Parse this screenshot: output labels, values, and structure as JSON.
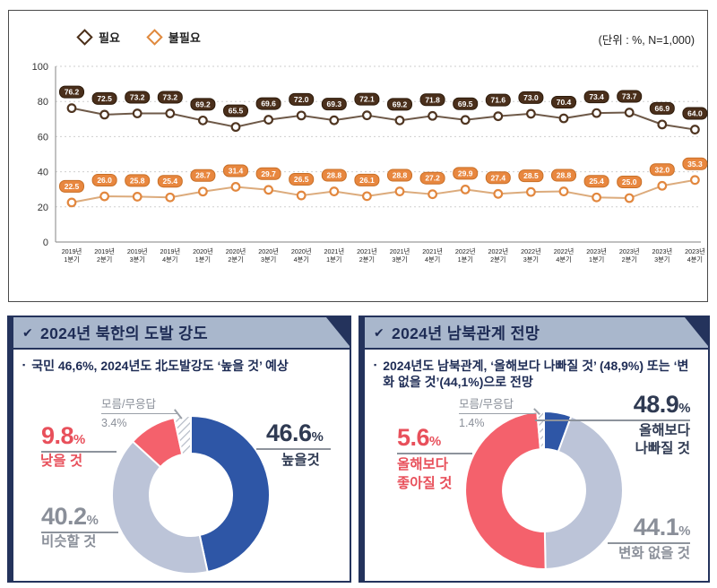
{
  "common": {
    "percent_sign": "%",
    "check_icon": "✔",
    "bullet_icon": "▪"
  },
  "chart_data": [
    {
      "type": "line",
      "unit_note": "(단위 : %, N=1,000)",
      "legend_position": "top-left",
      "grid": true,
      "ylim": [
        0,
        100
      ],
      "y_ticks": [
        0,
        20,
        40,
        60,
        80,
        100
      ],
      "categories": [
        "2019년 1분기",
        "2019년 2분기",
        "2019년 3분기",
        "2019년 4분기",
        "2020년 1분기",
        "2020년 2분기",
        "2020년 3분기",
        "2020년 4분기",
        "2021년 1분기",
        "2021년 2분기",
        "2021년 3분기",
        "2021년 4분기",
        "2022년 1분기",
        "2022년 2분기",
        "2022년 3분기",
        "2022년 4분기",
        "2023년 1분기",
        "2023년 2분기",
        "2023년 3분기",
        "2023년 4분기"
      ],
      "series": [
        {
          "name": "필요",
          "line_color": "#6e5948",
          "marker_color": "#4f3521",
          "pill_color": "#4a2f1b",
          "pill_border": "#2c1a0a",
          "values": [
            76.2,
            72.5,
            73.2,
            73.2,
            69.2,
            65.5,
            69.6,
            72.0,
            69.3,
            72.1,
            69.2,
            71.8,
            69.5,
            71.6,
            73.0,
            70.4,
            73.4,
            73.7,
            66.9,
            64.0
          ]
        },
        {
          "name": "불필요",
          "line_color": "#dcab7c",
          "marker_color": "#e2873e",
          "pill_color": "#e8873f",
          "pill_border": "#c86f26",
          "values": [
            22.5,
            26.0,
            25.8,
            25.4,
            28.7,
            31.4,
            29.7,
            26.5,
            28.8,
            26.1,
            28.8,
            27.2,
            29.9,
            27.4,
            28.5,
            28.8,
            25.4,
            25.0,
            32.0,
            35.3
          ]
        }
      ]
    },
    {
      "type": "pie",
      "donut": true,
      "title": "2024년 북한의 도발 강도",
      "slices": [
        {
          "label": "높을 것",
          "value": 46.6,
          "color": "#2e56a6"
        },
        {
          "label": "비슷할 것",
          "value": 40.2,
          "color": "#bcc4d8"
        },
        {
          "label": "낮을 것",
          "value": 9.8,
          "color": "#f4616c"
        },
        {
          "label": "모름/무응답",
          "value": 3.4,
          "color": "hatch"
        }
      ]
    },
    {
      "type": "pie",
      "donut": true,
      "title": "2024년 남북관계 전망",
      "slices": [
        {
          "label": "올해보다 좋아질 것",
          "value": 5.6,
          "color": "#2e56a6"
        },
        {
          "label": "변화 없을 것",
          "value": 44.1,
          "color": "#bcc4d8"
        },
        {
          "label": "올해보다 나빠질 것",
          "value": 48.9,
          "color": "#f4616c"
        },
        {
          "label": "모름/무응답",
          "value": 1.4,
          "color": "hatch"
        }
      ]
    }
  ],
  "left_panel": {
    "title": "2024년 북한의 도발 강도",
    "bullet": "국민 46,6%, 2024년도 北도발강도 ‘높을 것’ 예상",
    "labels": {
      "dk_name": "모름/무응답",
      "dk_value": "3.4%",
      "high_value": "46.6",
      "high_name": "높을것",
      "low_value": "9.8",
      "low_name": "낮을 것",
      "similar_value": "40.2",
      "similar_name": "비슷할 것"
    }
  },
  "right_panel": {
    "title": "2024년 남북관계 전망",
    "bullet": "2024년도 남북관계, ‘올해보다 나빠질 것’ (48,9%) 또는 ‘변화 없을 것’(44,1%)으로 전망",
    "labels": {
      "dk_name": "모름/무응답",
      "dk_value": "1.4%",
      "worse_value": "48.9",
      "worse_name_1": "올해보다",
      "worse_name_2": "나빠질 것",
      "better_value": "5.6",
      "better_name_1": "올해보다",
      "better_name_2": "좋아질 것",
      "nochange_value": "44.1",
      "nochange_name": "변화 없을 것"
    }
  }
}
